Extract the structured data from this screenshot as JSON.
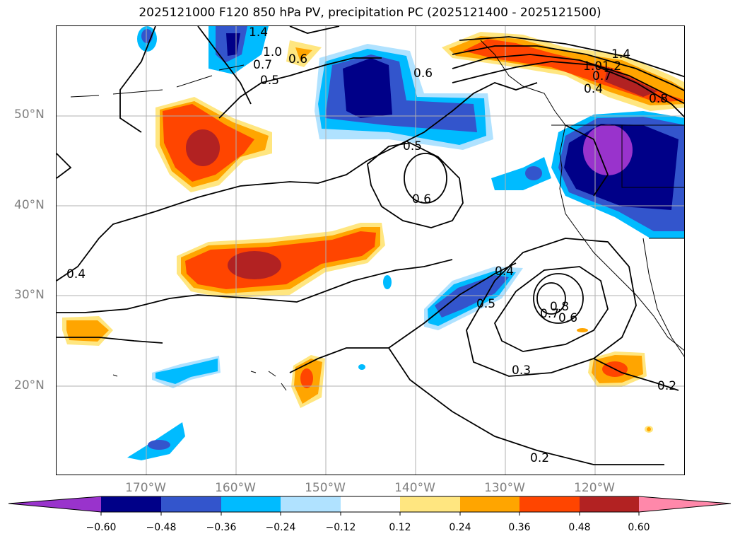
{
  "title": "2025121000 F120 850 hPa PV, precipitation PC (2025121400 - 2025121500)",
  "lat_labels": [
    "50°N",
    "40°N",
    "30°N",
    "20°N"
  ],
  "lon_labels": [
    "170°W",
    "160°W",
    "150°W",
    "140°W",
    "130°W",
    "120°W"
  ],
  "colorbar": {
    "ticks": [
      "−0.60",
      "−0.48",
      "−0.36",
      "−0.24",
      "−0.12",
      "0.12",
      "0.24",
      "0.36",
      "0.48",
      "0.60"
    ],
    "colors": [
      "#9933cc",
      "#000088",
      "#3355cc",
      "#00bbff",
      "#b0e2ff",
      "#ffffff",
      "#ffe680",
      "#ffa500",
      "#ff4500",
      "#b22222",
      "#ff88aa"
    ]
  },
  "contour_labels": [
    "1.4",
    "1.0",
    "0.7",
    "0.6",
    "0.5",
    "0.6",
    "1.4",
    "1.2",
    "1.0",
    "0.7",
    "0.4",
    "0.8",
    "0.5",
    "0.6",
    "0.4",
    "0.4",
    "0.5",
    "0.7",
    "0.8",
    "0.6",
    "0.3",
    "0.2",
    "0.2"
  ],
  "grid": "on",
  "colors": {
    "grid": "#b0b0b0",
    "label_gray": "#808080",
    "contour": "#000000"
  }
}
